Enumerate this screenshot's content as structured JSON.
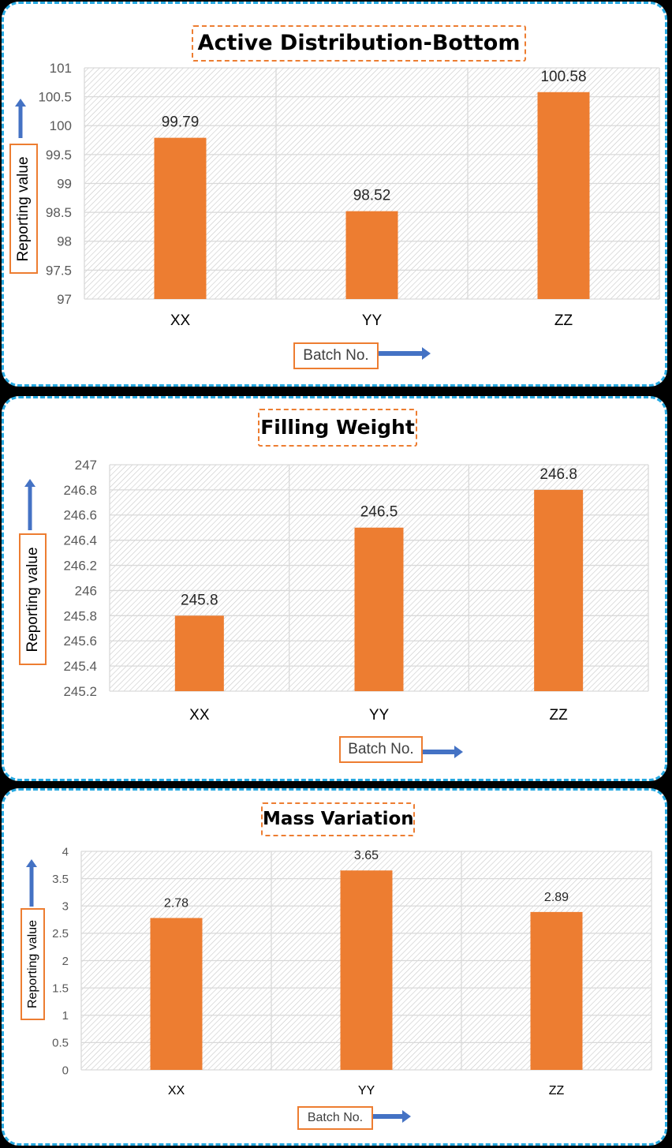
{
  "colors": {
    "bar": "#ed7d31",
    "panel_border": "#27a9e1",
    "label_border": "#ed7d31",
    "arrow": "#4472c4",
    "gridline": "#d9d9d9",
    "hatch": "#c8c8c8"
  },
  "chart_data": [
    {
      "type": "bar",
      "title": "Active Distribution-Bottom",
      "xlabel": "Batch No.",
      "ylabel": "Reporting value",
      "categories": [
        "XX",
        "YY",
        "ZZ"
      ],
      "values": [
        99.79,
        98.52,
        100.58
      ],
      "value_labels": [
        "99.79",
        "98.52",
        "100.58"
      ],
      "ylim": [
        97,
        101
      ],
      "yticks": [
        "97",
        "97.5",
        "98",
        "98.5",
        "99",
        "99.5",
        "100",
        "100.5",
        "101"
      ],
      "grid": true,
      "legend": "none"
    },
    {
      "type": "bar",
      "title": "Filling Weight",
      "xlabel": "Batch No.",
      "ylabel": "Reporting value",
      "categories": [
        "XX",
        "YY",
        "ZZ"
      ],
      "values": [
        245.8,
        246.5,
        246.8
      ],
      "value_labels": [
        "245.8",
        "246.5",
        "246.8"
      ],
      "ylim": [
        245.2,
        247
      ],
      "yticks": [
        "245.2",
        "245.4",
        "245.6",
        "245.8",
        "246",
        "246.2",
        "246.4",
        "246.6",
        "246.8",
        "247"
      ],
      "grid": true,
      "legend": "none"
    },
    {
      "type": "bar",
      "title": "Mass Variation",
      "xlabel": "Batch No.",
      "ylabel": "Reporting value",
      "categories": [
        "XX",
        "YY",
        "ZZ"
      ],
      "values": [
        2.78,
        3.65,
        2.89
      ],
      "value_labels": [
        "2.78",
        "3.65",
        "2.89"
      ],
      "ylim": [
        0,
        4
      ],
      "yticks": [
        "0",
        "0.5",
        "1",
        "1.5",
        "2",
        "2.5",
        "3",
        "3.5",
        "4"
      ],
      "grid": true,
      "legend": "none"
    }
  ]
}
